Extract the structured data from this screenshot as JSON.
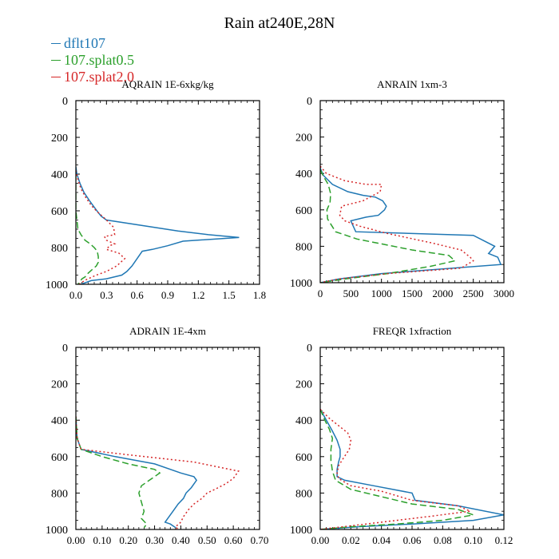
{
  "figure": {
    "title": "Rain at240E,28N"
  },
  "colors": {
    "dflt107": "#1f77b4",
    "splat05": "#2ca02c",
    "splat20": "#d62728"
  },
  "legend": [
    {
      "label": "dflt107",
      "color": "#1f77b4"
    },
    {
      "label": "107.splat0.5",
      "color": "#2ca02c"
    },
    {
      "label": "107.splat2.0",
      "color": "#d62728"
    }
  ],
  "chart_data": [
    {
      "type": "line",
      "title": "AQRAIN  1E-6xkg/kg",
      "xlim": [
        0,
        1.8
      ],
      "ylim": [
        1000,
        0
      ],
      "xticks": [
        "0.0",
        "0.3",
        "0.6",
        "0.9",
        "1.2",
        "1.5",
        "1.8"
      ],
      "xtick_values": [
        0,
        0.3,
        0.6,
        0.9,
        1.2,
        1.5,
        1.8
      ],
      "yticks": [
        "0",
        "200",
        "400",
        "600",
        "800",
        "1000"
      ],
      "series": [
        {
          "name": "dflt107",
          "style": "solid",
          "x": [
            0,
            0.01,
            0.04,
            0.08,
            0.14,
            0.18,
            0.22,
            0.25,
            0.3,
            1.0,
            1.3,
            1.6,
            1.05,
            0.9,
            0.75,
            0.65,
            0.6,
            0.55,
            0.5,
            0.45,
            0.3,
            0.15,
            0.05
          ],
          "y": [
            360,
            400,
            450,
            500,
            550,
            580,
            610,
            630,
            650,
            710,
            730,
            745,
            765,
            790,
            810,
            820,
            860,
            900,
            930,
            950,
            970,
            980,
            1000
          ]
        },
        {
          "name": "107.splat0.5",
          "style": "dashed",
          "x": [
            0,
            0,
            0,
            0.01,
            0.02,
            0.05,
            0.09,
            0.14,
            0.18,
            0.21,
            0.22,
            0.22,
            0.2,
            0.16,
            0.12,
            0.09,
            0.06,
            0.04,
            0.02
          ],
          "y": [
            400,
            500,
            600,
            650,
            700,
            730,
            760,
            780,
            800,
            820,
            850,
            880,
            900,
            920,
            940,
            960,
            970,
            985,
            1000
          ]
        },
        {
          "name": "107.splat2.0",
          "style": "dotted",
          "x": [
            0,
            0.02,
            0.05,
            0.1,
            0.15,
            0.2,
            0.3,
            0.37,
            0.38,
            0.28,
            0.3,
            0.38,
            0.33,
            0.3,
            0.42,
            0.48,
            0.4,
            0.3,
            0.2,
            0.1,
            0.03
          ],
          "y": [
            380,
            430,
            480,
            530,
            570,
            600,
            650,
            690,
            730,
            740,
            760,
            780,
            790,
            810,
            830,
            860,
            900,
            930,
            950,
            975,
            1000
          ]
        }
      ]
    },
    {
      "type": "line",
      "title": "ANRAIN  1xm-3",
      "xlim": [
        0,
        3000
      ],
      "ylim": [
        1000,
        0
      ],
      "xticks": [
        "0",
        "500",
        "1000",
        "1500",
        "2000",
        "2500",
        "3000"
      ],
      "xtick_values": [
        0,
        500,
        1000,
        1500,
        2000,
        2500,
        3000
      ],
      "yticks": [
        "0",
        "200",
        "400",
        "600",
        "800",
        "1000"
      ],
      "series": [
        {
          "name": "dflt107",
          "style": "solid",
          "x": [
            0,
            50,
            200,
            450,
            700,
            900,
            1020,
            1080,
            1050,
            950,
            750,
            500,
            580,
            2500,
            2850,
            2750,
            2900,
            2950,
            1000,
            300,
            0
          ],
          "y": [
            370,
            410,
            460,
            500,
            520,
            530,
            550,
            580,
            600,
            630,
            640,
            660,
            720,
            740,
            800,
            840,
            860,
            900,
            950,
            980,
            1000
          ]
        },
        {
          "name": "107.splat0.5",
          "style": "dashed",
          "x": [
            0,
            60,
            130,
            170,
            160,
            110,
            120,
            250,
            600,
            1500,
            2100,
            2200,
            1800,
            1100,
            400,
            0
          ],
          "y": [
            380,
            420,
            460,
            510,
            560,
            600,
            650,
            720,
            760,
            820,
            850,
            880,
            910,
            950,
            980,
            1000
          ]
        },
        {
          "name": "107.splat2.0",
          "style": "dotted",
          "x": [
            0,
            100,
            400,
            750,
            1000,
            980,
            700,
            350,
            320,
            400,
            650,
            1100,
            1800,
            2300,
            2450,
            2500,
            2300,
            1100,
            300,
            0
          ],
          "y": [
            360,
            400,
            440,
            460,
            460,
            500,
            550,
            580,
            630,
            660,
            690,
            730,
            780,
            820,
            860,
            880,
            920,
            950,
            980,
            1000
          ]
        }
      ]
    },
    {
      "type": "line",
      "title": "ADRAIN  1E-4xm",
      "xlim": [
        0,
        0.7
      ],
      "ylim": [
        1000,
        0
      ],
      "xticks": [
        "0.00",
        "0.10",
        "0.20",
        "0.30",
        "0.40",
        "0.50",
        "0.60",
        "0.70"
      ],
      "xtick_values": [
        0,
        0.1,
        0.2,
        0.3,
        0.4,
        0.5,
        0.6,
        0.7
      ],
      "yticks": [
        "0",
        "200",
        "400",
        "600",
        "800",
        "1000"
      ],
      "series": [
        {
          "name": "dflt107",
          "style": "solid",
          "x": [
            0,
            0.005,
            0.02,
            0.15,
            0.3,
            0.4,
            0.45,
            0.46,
            0.44,
            0.42,
            0.41,
            0.39,
            0.37,
            0.35,
            0.34,
            0.36,
            0.38
          ],
          "y": [
            380,
            500,
            560,
            600,
            640,
            690,
            710,
            730,
            770,
            800,
            830,
            860,
            900,
            940,
            960,
            970,
            990
          ]
        },
        {
          "name": "107.splat0.5",
          "style": "dashed",
          "x": [
            0,
            0.005,
            0.02,
            0.1,
            0.2,
            0.3,
            0.32,
            0.28,
            0.25,
            0.24,
            0.25,
            0.26,
            0.25,
            0.27,
            0.26
          ],
          "y": [
            380,
            500,
            560,
            600,
            640,
            670,
            690,
            730,
            760,
            800,
            850,
            900,
            940,
            970,
            990
          ]
        },
        {
          "name": "107.splat2.0",
          "style": "dotted",
          "x": [
            0,
            0.005,
            0.02,
            0.2,
            0.45,
            0.62,
            0.6,
            0.57,
            0.53,
            0.5,
            0.48,
            0.45,
            0.43,
            0.41,
            0.4,
            0.38,
            0.39
          ],
          "y": [
            380,
            500,
            560,
            590,
            630,
            680,
            720,
            750,
            780,
            800,
            830,
            860,
            890,
            930,
            960,
            985,
            1000
          ]
        }
      ]
    },
    {
      "type": "line",
      "title": "FREQR  1xfraction",
      "xlim": [
        0,
        0.12
      ],
      "ylim": [
        1000,
        0
      ],
      "xticks": [
        "0.00",
        "0.02",
        "0.04",
        "0.06",
        "0.08",
        "0.10",
        "0.12"
      ],
      "xtick_values": [
        0,
        0.02,
        0.04,
        0.06,
        0.08,
        0.1,
        0.12
      ],
      "yticks": [
        "0",
        "200",
        "400",
        "600",
        "800",
        "1000"
      ],
      "series": [
        {
          "name": "dflt107",
          "style": "solid",
          "x": [
            0,
            0.004,
            0.008,
            0.011,
            0.013,
            0.013,
            0.012,
            0.011,
            0.011,
            0.016,
            0.035,
            0.06,
            0.062,
            0.09,
            0.12,
            0.1,
            0.06,
            0.025,
            0.008,
            0
          ],
          "y": [
            340,
            400,
            460,
            510,
            560,
            600,
            630,
            670,
            710,
            730,
            760,
            800,
            840,
            870,
            920,
            950,
            970,
            985,
            995,
            1000
          ]
        },
        {
          "name": "107.splat0.5",
          "style": "dashed",
          "x": [
            0,
            0.003,
            0.006,
            0.008,
            0.007,
            0.007,
            0.008,
            0.01,
            0.02,
            0.04,
            0.06,
            0.09,
            0.1,
            0.08,
            0.05,
            0.02,
            0
          ],
          "y": [
            340,
            400,
            450,
            500,
            560,
            620,
            680,
            730,
            780,
            820,
            860,
            890,
            920,
            950,
            970,
            985,
            1000
          ]
        },
        {
          "name": "107.splat2.0",
          "style": "dotted",
          "x": [
            0,
            0.006,
            0.012,
            0.018,
            0.02,
            0.019,
            0.015,
            0.012,
            0.011,
            0.012,
            0.02,
            0.04,
            0.06,
            0.09,
            0.098,
            0.07,
            0.04,
            0.015,
            0.004,
            0
          ],
          "y": [
            340,
            390,
            430,
            470,
            510,
            560,
            610,
            650,
            690,
            720,
            760,
            790,
            840,
            870,
            900,
            930,
            960,
            985,
            995,
            1000
          ]
        }
      ]
    }
  ]
}
